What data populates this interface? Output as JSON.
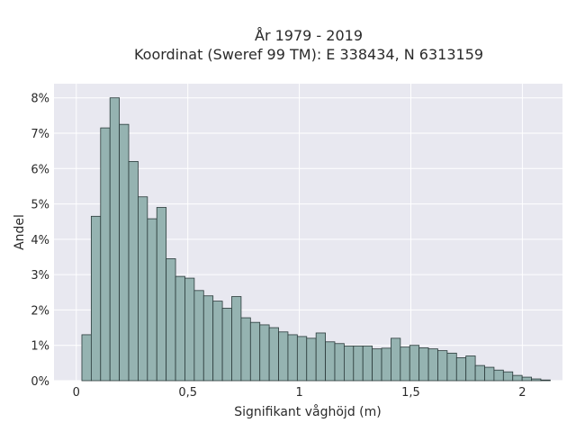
{
  "chart_data": {
    "type": "bar",
    "title": "År 1979 - 2019",
    "subtitle": "Koordinat (Sweref 99 TM): E 338434, N 6313159",
    "xlabel": "Signifikant våghöjd (m)",
    "ylabel": "Andel",
    "bin_start": 0.025,
    "bin_width": 0.042,
    "values": [
      1.3,
      4.65,
      7.15,
      8.0,
      7.25,
      6.2,
      5.2,
      4.58,
      4.9,
      3.45,
      2.95,
      2.9,
      2.55,
      2.4,
      2.25,
      2.05,
      2.38,
      1.78,
      1.65,
      1.58,
      1.5,
      1.38,
      1.3,
      1.25,
      1.2,
      1.35,
      1.1,
      1.05,
      0.98,
      0.98,
      0.98,
      0.9,
      0.92,
      1.2,
      0.95,
      1.0,
      0.93,
      0.9,
      0.85,
      0.78,
      0.65,
      0.7,
      0.43,
      0.38,
      0.3,
      0.25,
      0.15,
      0.1,
      0.05,
      0.02
    ],
    "xlim": [
      -0.1,
      2.18
    ],
    "ylim": [
      0,
      8.4
    ],
    "xticks": [
      0,
      0.5,
      1,
      1.5,
      2
    ],
    "xtick_labels": [
      "0",
      "0,5",
      "1",
      "1,5",
      "2"
    ],
    "yticks": [
      0,
      1,
      2,
      3,
      4,
      5,
      6,
      7,
      8
    ],
    "ytick_labels": [
      "0%",
      "1%",
      "2%",
      "3%",
      "4%",
      "5%",
      "6%",
      "7%",
      "8%"
    ],
    "grid": true,
    "colors": {
      "bar": "#95b3b1",
      "edge": "#2a3a3a",
      "background": "#e8e8f0"
    }
  }
}
